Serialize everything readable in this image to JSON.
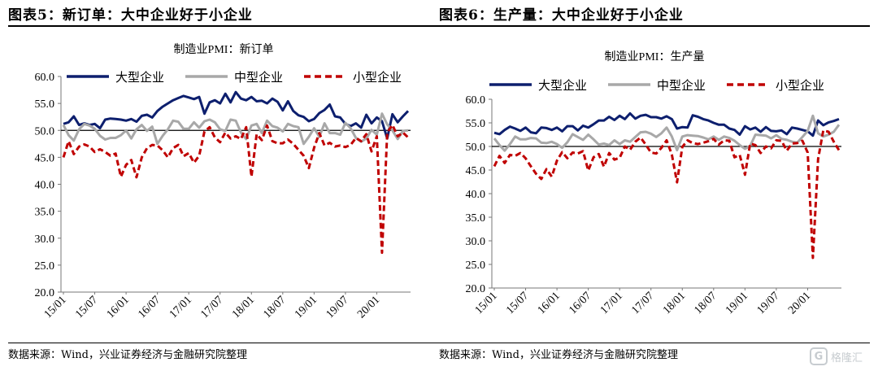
{
  "colors": {
    "large": "#0d1f6e",
    "medium": "#a8a8a8",
    "small": "#c00000",
    "axis": "#777777",
    "ref": "#000000"
  },
  "panels": [
    {
      "fig_title": "图表5：新订单：大中企业好于小企业",
      "source": "数据来源：Wind，兴业证券经济与金融研究院整理"
    },
    {
      "fig_title": "图表6：生产量：大中企业好于小企业",
      "source": "数据来源：Wind，兴业证券经济与金融研究院整理"
    }
  ],
  "watermark": {
    "icon": "g-logo-icon",
    "text": "格隆汇"
  },
  "chart_data": [
    {
      "type": "line",
      "title": "制造业PMI：新订单",
      "xlabel": "",
      "ylabel": "",
      "ylim": [
        20,
        60
      ],
      "yticks": [
        "60.0",
        "55.0",
        "50.0",
        "45.0",
        "40.0",
        "35.0",
        "30.0",
        "25.0",
        "20.0"
      ],
      "reference_line": 50,
      "x_tick_labels": [
        "15/01",
        "15/07",
        "16/01",
        "16/07",
        "17/01",
        "17/07",
        "18/01",
        "18/07",
        "19/01",
        "19/07",
        "20/01"
      ],
      "x_range": [
        "15/01",
        "20/05"
      ],
      "legend_position": "top",
      "series": [
        {
          "name": "大型企业",
          "style": "solid",
          "color_key": "large",
          "values": [
            51.2,
            51.5,
            52.6,
            51.0,
            51.3,
            51.0,
            51.2,
            50.4,
            52.0,
            52.2,
            52.1,
            52.0,
            51.8,
            52.1,
            51.6,
            52.7,
            52.9,
            52.4,
            53.6,
            54.4,
            55.0,
            55.6,
            56.0,
            56.4,
            56.1,
            55.8,
            56.2,
            53.1,
            55.2,
            55.6,
            55.0,
            56.8,
            55.2,
            57.1,
            55.9,
            55.6,
            56.2,
            55.4,
            55.5,
            55.0,
            55.9,
            55.3,
            53.7,
            55.4,
            53.6,
            52.8,
            52.5,
            51.7,
            52.1,
            53.2,
            53.8,
            54.8,
            52.6,
            52.4,
            51.2,
            50.8,
            51.3,
            50.5,
            52.9,
            51.3,
            52.4,
            51.7,
            48.5,
            53.0,
            51.5,
            52.6,
            53.6
          ]
        },
        {
          "name": "中型企业",
          "style": "solid",
          "color_key": "medium",
          "values": [
            51.0,
            49.1,
            48.1,
            50.2,
            51.2,
            50.9,
            50.3,
            49.0,
            48.3,
            48.6,
            48.6,
            49.1,
            50.0,
            48.5,
            50.2,
            51.0,
            49.9,
            50.7,
            47.5,
            49.0,
            50.2,
            51.8,
            51.6,
            50.3,
            50.3,
            51.5,
            50.5,
            51.7,
            52.0,
            51.5,
            50.2,
            49.9,
            52.0,
            51.8,
            49.6,
            48.4,
            50.9,
            51.2,
            49.5,
            51.8,
            50.8,
            50.5,
            49.8,
            51.2,
            50.8,
            50.6,
            47.5,
            48.8,
            50.4,
            48.8,
            51.3,
            49.5,
            49.5,
            49.2,
            51.4,
            50.4,
            48.6,
            47.9,
            48.5,
            50.1,
            49.2,
            53.1,
            51.1,
            50.0,
            48.4,
            49.9,
            50.0
          ]
        },
        {
          "name": "小型企业",
          "style": "dashed",
          "color_key": "small",
          "values": [
            45.0,
            48.0,
            45.6,
            47.0,
            47.4,
            47.0,
            46.0,
            46.5,
            46.0,
            45.3,
            45.7,
            41.4,
            43.6,
            44.5,
            41.3,
            45.0,
            46.7,
            47.3,
            47.2,
            46.3,
            45.0,
            46.7,
            47.3,
            45.2,
            45.8,
            44.0,
            45.3,
            49.8,
            50.6,
            48.7,
            47.8,
            49.6,
            48.5,
            48.9,
            48.4,
            50.6,
            41.4,
            49.3,
            48.2,
            50.9,
            48.0,
            47.6,
            47.6,
            48.3,
            47.5,
            46.4,
            45.3,
            43.0,
            46.8,
            49.5,
            47.2,
            47.7,
            47.0,
            47.2,
            46.9,
            47.3,
            48.6,
            48.0,
            49.3,
            46.1,
            48.9,
            27.3,
            49.6,
            51.0,
            48.9,
            49.6,
            48.7
          ]
        }
      ]
    },
    {
      "type": "line",
      "title": "制造业PMI：生产量",
      "xlabel": "",
      "ylabel": "",
      "ylim": [
        20,
        60
      ],
      "yticks": [
        "60.0",
        "55.0",
        "50.0",
        "45.0",
        "40.0",
        "35.0",
        "30.0",
        "25.0",
        "20.0"
      ],
      "reference_line": 50,
      "x_tick_labels": [
        "15/01",
        "15/07",
        "16/01",
        "16/07",
        "17/01",
        "17/07",
        "18/01",
        "18/07",
        "19/01",
        "19/07",
        "20/01"
      ],
      "x_range": [
        "15/01",
        "20/05"
      ],
      "legend_position": "top",
      "series": [
        {
          "name": "大型企业",
          "style": "solid",
          "color_key": "large",
          "values": [
            52.9,
            52.6,
            53.5,
            54.2,
            53.8,
            53.3,
            54.0,
            53.0,
            52.8,
            54.0,
            53.9,
            53.5,
            54.0,
            53.2,
            54.3,
            54.3,
            53.4,
            54.4,
            54.0,
            54.7,
            55.5,
            55.5,
            56.3,
            55.6,
            56.5,
            55.8,
            57.0,
            55.9,
            56.5,
            56.7,
            56.2,
            56.2,
            55.9,
            56.4,
            55.8,
            53.8,
            54.1,
            54.0,
            56.6,
            56.3,
            55.8,
            55.5,
            55.0,
            54.6,
            54.6,
            53.8,
            53.5,
            52.5,
            54.3,
            53.6,
            54.0,
            53.1,
            54.1,
            53.3,
            53.2,
            53.4,
            52.6,
            54.0,
            53.8,
            53.5,
            53.2,
            52.3,
            55.5,
            54.5,
            55.1,
            55.4,
            55.8
          ]
        },
        {
          "name": "中型企业",
          "style": "solid",
          "color_key": "medium",
          "values": [
            51.7,
            50.3,
            49.1,
            50.5,
            52.1,
            51.5,
            51.5,
            51.8,
            51.7,
            50.8,
            50.7,
            51.0,
            50.5,
            49.7,
            50.9,
            52.6,
            52.0,
            51.4,
            52.5,
            51.5,
            50.4,
            50.6,
            50.3,
            51.3,
            50.5,
            51.3,
            51.0,
            52.0,
            53.0,
            53.1,
            52.7,
            52.0,
            52.8,
            54.0,
            52.1,
            49.2,
            52.1,
            52.4,
            52.3,
            52.2,
            51.9,
            51.5,
            52.1,
            51.4,
            52.1,
            51.8,
            51.2,
            50.3,
            49.5,
            50.1,
            52.5,
            52.4,
            52.3,
            51.7,
            52.4,
            51.6,
            51.4,
            51.0,
            50.8,
            52.0,
            53.3,
            56.5,
            52.8,
            52.1,
            52.5,
            53.1,
            54.6
          ]
        },
        {
          "name": "小型企业",
          "style": "dashed",
          "color_key": "small",
          "values": [
            45.8,
            48.0,
            46.5,
            48.2,
            48.0,
            48.6,
            47.5,
            45.8,
            44.2,
            43.1,
            45.2,
            43.6,
            47.0,
            48.8,
            47.5,
            48.7,
            48.5,
            49.0,
            44.9,
            47.7,
            48.4,
            45.7,
            48.6,
            47.2,
            47.6,
            50.0,
            49.3,
            51.0,
            51.9,
            50.4,
            48.7,
            48.5,
            49.7,
            51.3,
            48.3,
            42.4,
            49.9,
            51.3,
            50.7,
            50.5,
            50.8,
            51.1,
            51.6,
            50.4,
            51.3,
            51.2,
            47.7,
            48.2,
            44.0,
            50.6,
            50.3,
            48.6,
            50.0,
            49.6,
            51.3,
            51.2,
            49.1,
            50.6,
            50.7,
            51.2,
            48.7,
            26.4,
            47.3,
            53.4,
            53.1,
            51.0,
            49.2
          ]
        }
      ]
    }
  ]
}
